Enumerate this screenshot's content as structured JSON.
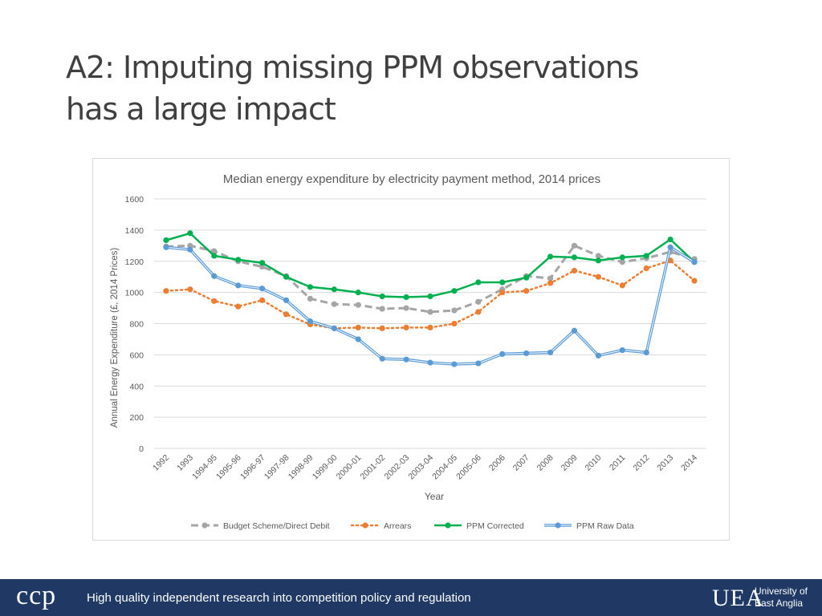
{
  "slide": {
    "title_line1": "A2: Imputing missing PPM observations",
    "title_line2": "has a large impact"
  },
  "footer": {
    "logo_text": "ccp",
    "tagline": "High quality independent research into competition policy and regulation",
    "uea_mark": "UEA",
    "uea_line1": "University of",
    "uea_line2": "East Anglia"
  },
  "chart_data": {
    "type": "line",
    "title": "Median energy expenditure by electricity payment method, 2014 prices",
    "xlabel": "Year",
    "ylabel": "Annual Energy Expenditure (£, 2014 Prices)",
    "ylim": [
      0,
      1600
    ],
    "yticks": [
      0,
      200,
      400,
      600,
      800,
      1000,
      1200,
      1400,
      1600
    ],
    "grid": true,
    "legend": "bottom",
    "categories": [
      "1992",
      "1993",
      "1994-95",
      "1995-96",
      "1996-97",
      "1997-98",
      "1998-99",
      "1999-00",
      "2000-01",
      "2001-02",
      "2002-03",
      "2003-04",
      "2004-05",
      "2005-06",
      "2006",
      "2007",
      "2008",
      "2009",
      "2010",
      "2011",
      "2012",
      "2013",
      "2014"
    ],
    "series": [
      {
        "name": "Budget Scheme/Direct Debit",
        "color": "#a5a5a5",
        "style": "dashed",
        "values": [
          1295,
          1300,
          1265,
          1200,
          1165,
          1105,
          960,
          925,
          920,
          895,
          900,
          875,
          885,
          940,
          1020,
          1105,
          1090,
          1300,
          1235,
          1195,
          1220,
          1260,
          1215
        ]
      },
      {
        "name": "Arrears",
        "color": "#ed7d31",
        "style": "dotted",
        "values": [
          1010,
          1020,
          945,
          910,
          950,
          860,
          795,
          770,
          775,
          770,
          775,
          775,
          800,
          875,
          1000,
          1010,
          1060,
          1140,
          1100,
          1045,
          1155,
          1205,
          1075
        ]
      },
      {
        "name": "PPM Corrected",
        "color": "#00b050",
        "style": "solid",
        "values": [
          1335,
          1380,
          1235,
          1210,
          1190,
          1100,
          1035,
          1020,
          1000,
          975,
          970,
          975,
          1010,
          1065,
          1065,
          1095,
          1230,
          1225,
          1205,
          1225,
          1235,
          1340,
          1195
        ]
      },
      {
        "name": "PPM Raw Data",
        "color": "#5b9bd5",
        "style": "double",
        "values": [
          1290,
          1275,
          1105,
          1045,
          1025,
          950,
          815,
          770,
          700,
          575,
          570,
          550,
          540,
          545,
          605,
          610,
          615,
          755,
          595,
          630,
          615,
          1290,
          1195
        ]
      }
    ]
  }
}
